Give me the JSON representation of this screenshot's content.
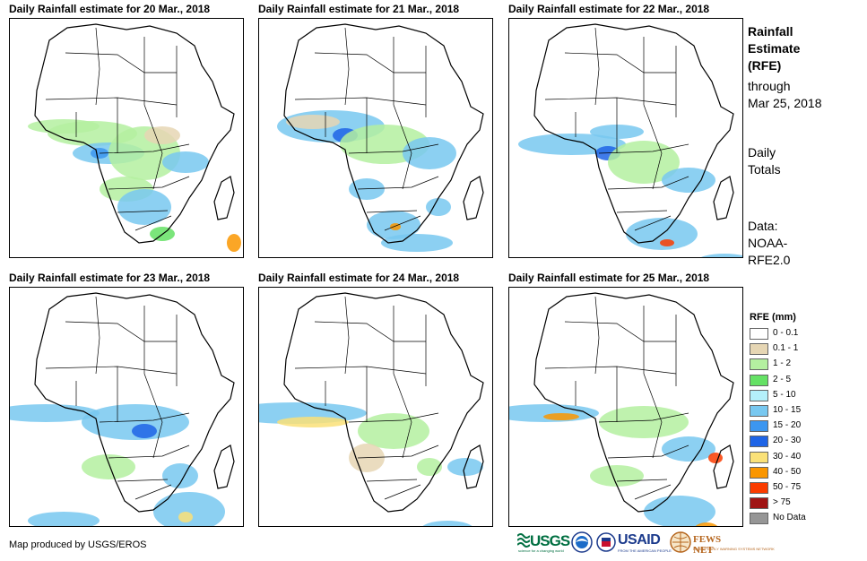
{
  "panels": [
    {
      "title": "Daily Rainfall estimate for 20 Mar., 2018"
    },
    {
      "title": "Daily Rainfall estimate for 21 Mar., 2018"
    },
    {
      "title": "Daily Rainfall estimate for 22 Mar., 2018"
    },
    {
      "title": "Daily Rainfall estimate for 23 Mar., 2018"
    },
    {
      "title": "Daily Rainfall estimate for 24 Mar., 2018"
    },
    {
      "title": "Daily Rainfall estimate for 25 Mar., 2018"
    }
  ],
  "sidebar": {
    "title_lines": [
      "Rainfall",
      "Estimate",
      "(RFE)"
    ],
    "through_lines": [
      "through",
      "Mar 25, 2018"
    ],
    "totals_lines": [
      "Daily",
      "Totals"
    ],
    "data_lines": [
      "Data:",
      "NOAA-",
      "RFE2.0"
    ]
  },
  "legend": {
    "title": "RFE (mm)",
    "items": [
      {
        "label": "0 - 0.1",
        "color": "#ffffff"
      },
      {
        "label": "0.1 - 1",
        "color": "#e6d6b4"
      },
      {
        "label": "1 - 2",
        "color": "#b4f0a0"
      },
      {
        "label": "2 - 5",
        "color": "#64e164"
      },
      {
        "label": "5 - 10",
        "color": "#b4f0fa"
      },
      {
        "label": "10 - 15",
        "color": "#78c8f0"
      },
      {
        "label": "15 - 20",
        "color": "#3c96f0"
      },
      {
        "label": "20 - 30",
        "color": "#1e64e6"
      },
      {
        "label": "30 - 40",
        "color": "#fae178"
      },
      {
        "label": "40 - 50",
        "color": "#fa9600"
      },
      {
        "label": "50 - 75",
        "color": "#fa3c00"
      },
      {
        "label": "> 75",
        "color": "#a01414"
      },
      {
        "label": "No Data",
        "color": "#969696"
      }
    ]
  },
  "footer": {
    "credit": "Map produced by USGS/EROS",
    "logos": {
      "usgs": "USGS",
      "usgs_tagline": "science for a changing world",
      "usaid": "USAID",
      "usaid_tagline": "FROM THE AMERICAN PEOPLE",
      "fews": "FEWS NET",
      "fews_tagline": "FAMINE EARLY WARNING SYSTEMS NETWORK"
    }
  },
  "map_colors": {
    "coast": "#000000",
    "light_green": "#b4f0a0",
    "green": "#64e164",
    "tan": "#e6d6b4",
    "light_blue": "#78c8f0",
    "blue": "#3c96f0",
    "dark_blue": "#1e64e6",
    "yellow": "#fae178",
    "orange": "#fa9600",
    "red": "#fa3c00"
  }
}
